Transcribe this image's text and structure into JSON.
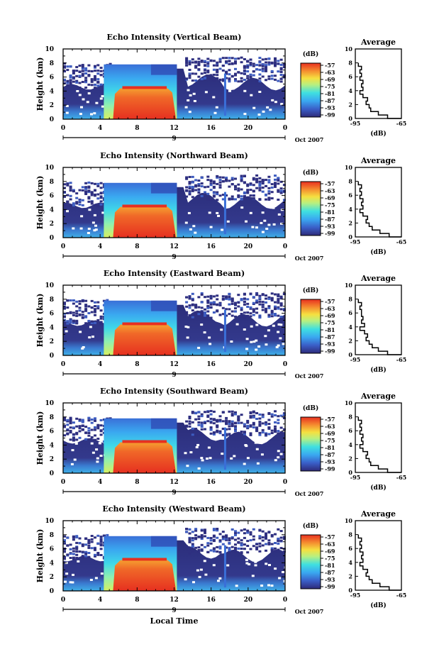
{
  "panels": [
    {
      "title": "Echo Intensity (Vertical Beam)",
      "ylabel": "Height (km)"
    },
    {
      "title": "Echo Intensity (Northward Beam)",
      "ylabel": "Height (km)"
    },
    {
      "title": "Echo Intensity (Eastward Beam)",
      "ylabel": "Height (km)"
    },
    {
      "title": "Echo Intensity (Southward Beam)",
      "ylabel": "Height (km)"
    },
    {
      "title": "Echo Intensity (Westward Beam)",
      "ylabel": "Height (km)"
    }
  ],
  "x_ticks": [
    "0",
    "4",
    "8",
    "12",
    "16",
    "20",
    "0"
  ],
  "y_ticks": [
    "0",
    "2",
    "4",
    "6",
    "8",
    "10"
  ],
  "date_day": "9",
  "date_label": "Oct 2007",
  "xlabel": "Local Time",
  "colorbar": {
    "unit": "(dB)",
    "ticks": [
      "-57",
      "-63",
      "-69",
      "-75",
      "-81",
      "-87",
      "-93",
      "-99"
    ]
  },
  "average": {
    "title": "Average",
    "xlabel": "(dB)",
    "x_ticks": [
      "-95",
      "-65"
    ],
    "y_ticks": [
      "0",
      "2",
      "4",
      "6",
      "8",
      "10"
    ]
  },
  "chart_data": [
    {
      "type": "heatmap",
      "title": "Echo Intensity (Vertical Beam)",
      "xlabel": "Local Time",
      "ylabel": "Height (km)",
      "xlim": [
        0,
        24
      ],
      "ylim": [
        0,
        10
      ],
      "colorbar_label": "(dB)",
      "colorbar_range": [
        -99,
        -57
      ],
      "inset": {
        "title": "Average",
        "xlabel": "(dB)",
        "xlim": [
          -95,
          -65
        ],
        "ylim": [
          0,
          10
        ],
        "height_km": [
          0,
          0.5,
          1,
          1.5,
          2,
          2.5,
          3,
          3.5,
          4,
          4.5,
          5,
          5.5,
          6,
          6.5,
          7,
          7.5,
          8
        ],
        "avg_db": [
          -66,
          -74,
          -80,
          -85,
          -86,
          -88,
          -87,
          -90,
          -92,
          -90,
          -91,
          -90,
          -92,
          -91,
          -92,
          -91,
          -93
        ]
      }
    },
    {
      "type": "heatmap",
      "title": "Echo Intensity (Northward Beam)",
      "xlabel": "Local Time",
      "ylabel": "Height (km)",
      "xlim": [
        0,
        24
      ],
      "ylim": [
        0,
        10
      ],
      "colorbar_label": "(dB)",
      "colorbar_range": [
        -99,
        -57
      ],
      "inset": {
        "title": "Average",
        "xlabel": "(dB)",
        "xlim": [
          -95,
          -65
        ],
        "ylim": [
          0,
          10
        ],
        "height_km": [
          0,
          0.5,
          1,
          1.5,
          2,
          2.5,
          3,
          3.5,
          4,
          4.5,
          5,
          5.5,
          6,
          6.5,
          7,
          7.5,
          8
        ],
        "avg_db": [
          -66,
          -73,
          -79,
          -84,
          -86,
          -88,
          -87,
          -90,
          -92,
          -90,
          -91,
          -90,
          -92,
          -91,
          -92,
          -91,
          -93
        ]
      }
    },
    {
      "type": "heatmap",
      "title": "Echo Intensity (Eastward Beam)",
      "xlabel": "Local Time",
      "ylabel": "Height (km)",
      "xlim": [
        0,
        24
      ],
      "ylim": [
        0,
        10
      ],
      "colorbar_label": "(dB)",
      "colorbar_range": [
        -99,
        -57
      ],
      "inset": {
        "title": "Average",
        "xlabel": "(dB)",
        "xlim": [
          -95,
          -65
        ],
        "ylim": [
          0,
          10
        ],
        "height_km": [
          0,
          0.5,
          1,
          1.5,
          2,
          2.5,
          3,
          3.5,
          4,
          4.5,
          5,
          5.5,
          6,
          6.5,
          7,
          7.5,
          8
        ],
        "avg_db": [
          -67,
          -74,
          -80,
          -84,
          -86,
          -88,
          -87,
          -89,
          -92,
          -89,
          -91,
          -90,
          -91,
          -91,
          -92,
          -91,
          -93
        ]
      }
    },
    {
      "type": "heatmap",
      "title": "Echo Intensity (Southward Beam)",
      "xlabel": "Local Time",
      "ylabel": "Height (km)",
      "xlim": [
        0,
        24
      ],
      "ylim": [
        0,
        10
      ],
      "colorbar_label": "(dB)",
      "colorbar_range": [
        -99,
        -57
      ],
      "inset": {
        "title": "Average",
        "xlabel": "(dB)",
        "xlim": [
          -95,
          -65
        ],
        "ylim": [
          0,
          10
        ],
        "height_km": [
          0,
          0.5,
          1,
          1.5,
          2,
          2.5,
          3,
          3.5,
          4,
          4.5,
          5,
          5.5,
          6,
          6.5,
          7,
          7.5,
          8
        ],
        "avg_db": [
          -66,
          -74,
          -80,
          -85,
          -86,
          -88,
          -87,
          -90,
          -92,
          -90,
          -91,
          -90,
          -92,
          -91,
          -92,
          -91,
          -93
        ]
      }
    },
    {
      "type": "heatmap",
      "title": "Echo Intensity (Westward Beam)",
      "xlabel": "Local Time",
      "ylabel": "Height (km)",
      "xlim": [
        0,
        24
      ],
      "ylim": [
        0,
        10
      ],
      "colorbar_label": "(dB)",
      "colorbar_range": [
        -99,
        -57
      ],
      "inset": {
        "title": "Average",
        "xlabel": "(dB)",
        "xlim": [
          -95,
          -65
        ],
        "ylim": [
          0,
          10
        ],
        "height_km": [
          0,
          0.5,
          1,
          1.5,
          2,
          2.5,
          3,
          3.5,
          4,
          4.5,
          5,
          5.5,
          6,
          6.5,
          7,
          7.5,
          8
        ],
        "avg_db": [
          -66,
          -73,
          -79,
          -84,
          -86,
          -88,
          -87,
          -90,
          -92,
          -90,
          -91,
          -90,
          -92,
          -91,
          -92,
          -91,
          -93
        ]
      }
    }
  ]
}
